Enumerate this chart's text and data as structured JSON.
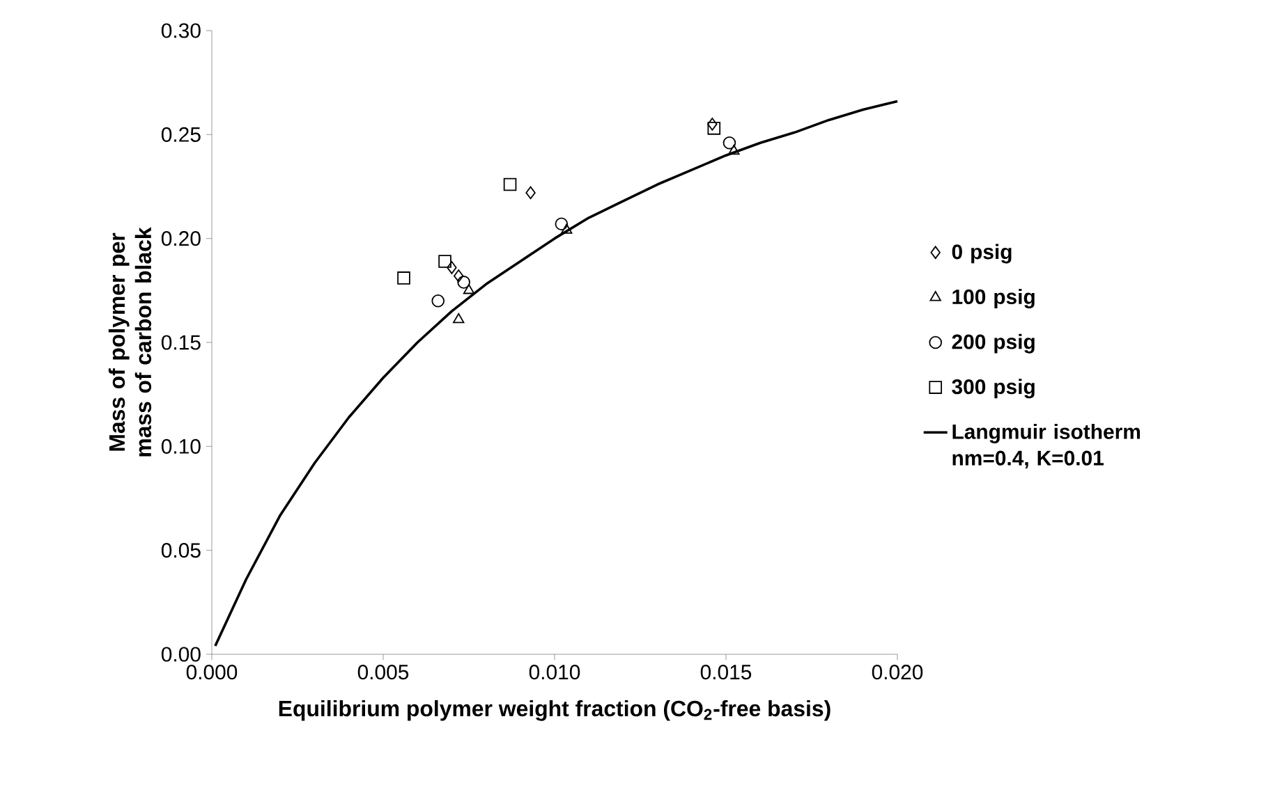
{
  "chart_data": {
    "type": "scatter",
    "xlabel": "Equilibrium polymer weight fraction (CO$_{2}$-free basis)",
    "ylabel": "Mass of polymer per mass of carbon black",
    "xlim": [
      0,
      0.02
    ],
    "ylim": [
      0,
      0.3
    ],
    "xticks": [
      {
        "value": 0,
        "label": "0.000"
      },
      {
        "value": 0.005,
        "label": "0.005"
      },
      {
        "value": 0.01,
        "label": "0.010"
      },
      {
        "value": 0.015,
        "label": "0.015"
      },
      {
        "value": 0.02,
        "label": "0.020"
      }
    ],
    "yticks": [
      {
        "value": 0,
        "label": "0.00"
      },
      {
        "value": 0.05,
        "label": "0.05"
      },
      {
        "value": 0.1,
        "label": "0.10"
      },
      {
        "value": 0.15,
        "label": "0.15"
      },
      {
        "value": 0.2,
        "label": "0.20"
      },
      {
        "value": 0.25,
        "label": "0.25"
      },
      {
        "value": 0.3,
        "label": "0.30"
      }
    ],
    "grid": false,
    "legend": "right",
    "series": [
      {
        "name": "0 psig",
        "color": "#000000",
        "marker": "diamond",
        "x": [
          0.007,
          0.0072,
          0.0093,
          0.0146
        ],
        "values": [
          0.186,
          0.182,
          0.222,
          0.255
        ]
      },
      {
        "name": "100 psig",
        "color": "#000000",
        "marker": "triangle",
        "x": [
          0.0072,
          0.0075,
          0.01035,
          0.01523
        ],
        "values": [
          0.161,
          0.175,
          0.204,
          0.242
        ]
      },
      {
        "name": "200 psig",
        "color": "#000000",
        "marker": "circle",
        "x": [
          0.0066,
          0.00735,
          0.0102,
          0.0151
        ],
        "values": [
          0.17,
          0.179,
          0.207,
          0.246
        ]
      },
      {
        "name": "300 psig",
        "color": "#000000",
        "marker": "square",
        "x": [
          0.0056,
          0.0068,
          0.0087,
          0.01465
        ],
        "values": [
          0.181,
          0.189,
          0.226,
          0.253
        ]
      },
      {
        "name": "Langmuir isotherm nm=0.4, K=0.01",
        "type": "line",
        "color": "#000000",
        "marker": "none",
        "line_style": "solid",
        "x": [
          0.0001,
          0.001,
          0.002,
          0.003,
          0.004,
          0.005,
          0.006,
          0.007,
          0.008,
          0.009,
          0.01,
          0.011,
          0.012,
          0.013,
          0.014,
          0.015,
          0.016,
          0.017,
          0.018,
          0.019,
          0.02
        ],
        "values": [
          0.004,
          0.036,
          0.067,
          0.092,
          0.114,
          0.133,
          0.15,
          0.165,
          0.178,
          0.189,
          0.2,
          0.21,
          0.218,
          0.226,
          0.233,
          0.24,
          0.246,
          0.251,
          0.257,
          0.262,
          0.266
        ]
      }
    ]
  }
}
